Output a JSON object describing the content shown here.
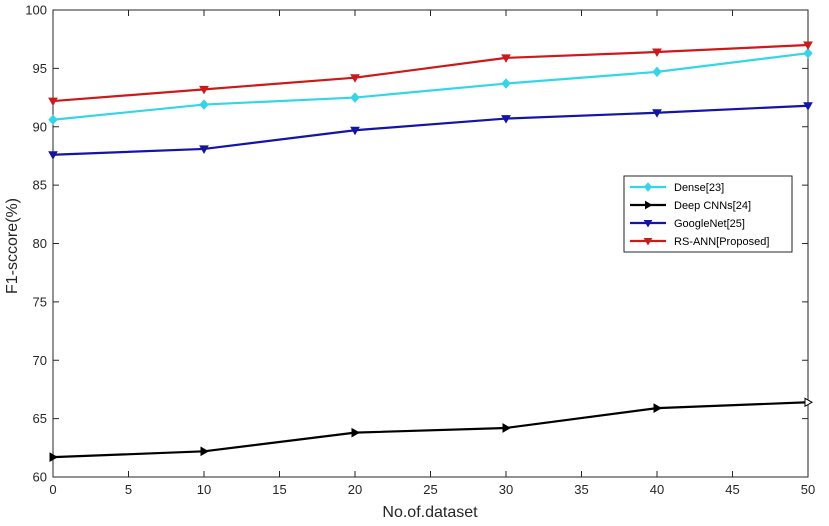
{
  "chart_data": {
    "type": "line",
    "xlabel": "No.of.dataset",
    "ylabel": "F1-sccore(%)",
    "xlim": [
      0,
      50
    ],
    "ylim": [
      60,
      100
    ],
    "xticks": [
      0,
      5,
      10,
      15,
      20,
      25,
      30,
      35,
      40,
      45,
      50
    ],
    "yticks": [
      60,
      65,
      70,
      75,
      80,
      85,
      90,
      95,
      100
    ],
    "grid": false,
    "legend_position": "right",
    "x": [
      0,
      10,
      20,
      30,
      40,
      50
    ],
    "series": [
      {
        "name": "Dense[23]",
        "color": "#33d6e8",
        "marker": "diamond",
        "values": [
          90.6,
          91.9,
          92.5,
          93.7,
          94.7,
          96.3
        ]
      },
      {
        "name": "Deep CNNs[24]",
        "color": "#000000",
        "marker": "triangle-right",
        "values": [
          61.7,
          62.2,
          63.8,
          64.2,
          65.9,
          66.4
        ]
      },
      {
        "name": "GoogleNet[25]",
        "color": "#1414a8",
        "marker": "triangle-down",
        "values": [
          87.6,
          88.1,
          89.7,
          90.7,
          91.2,
          91.8
        ]
      },
      {
        "name": "RS-ANN[Proposed]",
        "color": "#cc1a1a",
        "marker": "triangle-down",
        "values": [
          92.2,
          93.2,
          94.2,
          95.9,
          96.4,
          97.0
        ]
      }
    ]
  }
}
